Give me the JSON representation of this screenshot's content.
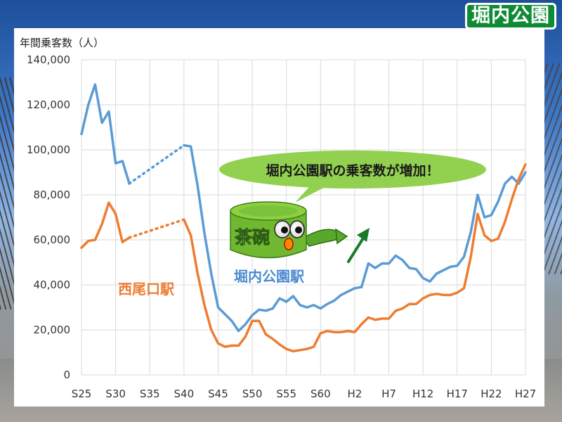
{
  "page": {
    "badge_title": "堀内公園"
  },
  "chart_data": {
    "type": "line",
    "ylabel": "年間乗客数（人）",
    "ylim": [
      0,
      140000
    ],
    "yticks": [
      0,
      20000,
      40000,
      60000,
      80000,
      100000,
      120000,
      140000
    ],
    "ytick_labels": [
      "0",
      "20,000",
      "40,000",
      "60,000",
      "80,000",
      "100,000",
      "120,000",
      "140,000"
    ],
    "x_categories": [
      "S25",
      "S30",
      "S35",
      "S40",
      "S45",
      "S50",
      "S55",
      "S60",
      "H2",
      "H7",
      "H12",
      "H17",
      "H22",
      "H27"
    ],
    "x_range": [
      0,
      65
    ],
    "grid": true,
    "colors": {
      "horiuchi": "#5b9bd5",
      "nishio": "#ed7d31",
      "callout": "#92d050",
      "badge": "#0f8a35"
    },
    "series": [
      {
        "name": "堀内公園駅",
        "color": "#5b9bd5",
        "segments": [
          {
            "style": "solid",
            "x": [
              0,
              1,
              2,
              3,
              4,
              5,
              6,
              7
            ],
            "y": [
              107000,
              120000,
              129000,
              112000,
              117000,
              94000,
              95000,
              85000
            ]
          },
          {
            "style": "dotted",
            "x": [
              7,
              15
            ],
            "y": [
              85000,
              102000
            ]
          },
          {
            "style": "solid",
            "x": [
              15,
              16,
              17,
              18,
              19,
              20,
              21,
              22,
              23,
              24,
              25,
              26,
              27,
              28,
              29,
              30,
              31,
              32,
              33,
              34,
              35,
              36,
              37,
              38,
              39,
              40,
              41,
              42,
              43,
              44,
              45,
              46,
              47,
              48,
              49,
              50,
              51,
              52,
              53,
              54,
              55,
              56,
              57,
              58,
              59,
              60,
              61,
              62,
              63,
              64,
              65
            ],
            "y": [
              102000,
              101500,
              84000,
              63000,
              45000,
              30000,
              27000,
              24000,
              19500,
              22500,
              26500,
              29000,
              28500,
              29500,
              34000,
              32500,
              35000,
              31000,
              30000,
              31000,
              29500,
              31500,
              33000,
              35500,
              37000,
              38500,
              39000,
              49500,
              47500,
              49500,
              49500,
              53000,
              51000,
              47500,
              47000,
              43000,
              41500,
              45000,
              46500,
              48000,
              48500,
              52500,
              63500,
              80000,
              70000,
              71000,
              77000,
              85000,
              88000,
              85000,
              90000
            ]
          }
        ]
      },
      {
        "name": "西尾口駅",
        "color": "#ed7d31",
        "segments": [
          {
            "style": "solid",
            "x": [
              0,
              1,
              2,
              3,
              4,
              5,
              6,
              7
            ],
            "y": [
              56500,
              59500,
              60000,
              67000,
              76500,
              71500,
              59000,
              61000
            ]
          },
          {
            "style": "dotted",
            "x": [
              7,
              15
            ],
            "y": [
              61000,
              69000
            ]
          },
          {
            "style": "solid",
            "x": [
              15,
              16,
              17,
              18,
              19,
              20,
              21,
              22,
              23,
              24,
              25,
              26,
              27,
              28,
              29,
              30,
              31,
              32,
              33,
              34,
              35,
              36,
              37,
              38,
              39,
              40,
              41,
              42,
              43,
              44,
              45,
              46,
              47,
              48,
              49,
              50,
              51,
              52,
              53,
              54,
              55,
              56,
              57,
              58,
              59,
              60,
              61,
              62,
              63,
              64,
              65
            ],
            "y": [
              69000,
              62000,
              45000,
              31000,
              20000,
              14000,
              12500,
              13000,
              13000,
              17000,
              24000,
              24000,
              18000,
              16000,
              13500,
              11500,
              10500,
              11000,
              11500,
              12500,
              18500,
              19500,
              19000,
              19000,
              19500,
              19000,
              22500,
              25500,
              24500,
              25000,
              25000,
              28500,
              29500,
              31500,
              31500,
              34000,
              35500,
              36000,
              35500,
              35500,
              36500,
              38500,
              52500,
              71500,
              62000,
              59500,
              60500,
              68000,
              78000,
              87000,
              93500
            ]
          }
        ]
      }
    ],
    "labels": {
      "horiuchi": "堀内公園駅",
      "nishio": "西尾口駅",
      "callout": "堀内公園駅の乗客数が増加！"
    },
    "mascot": {
      "text": "茶碗",
      "colors": {
        "body": "#6fb82f",
        "top": "#8fd043",
        "arm": "#5aa82a",
        "mouth": "#ff8c00",
        "arrow": "#1a7a2a"
      }
    }
  }
}
